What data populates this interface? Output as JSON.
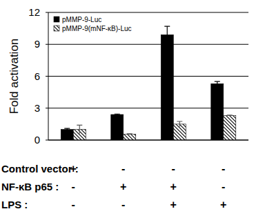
{
  "chart_data": {
    "type": "bar",
    "y_label": "Fold activation",
    "categories": [
      null,
      null,
      null,
      null
    ],
    "series": [
      {
        "name": "pMMP-9-Luc",
        "color": "#000000",
        "values": [
          1.0,
          2.4,
          9.9,
          5.3
        ],
        "errors": [
          0.1,
          0.05,
          0.8,
          0.2
        ]
      },
      {
        "name": "pMMP-9(mNF-κB)-Luc",
        "color": "#000000",
        "marker": "hatch",
        "values": [
          1.0,
          0.55,
          1.5,
          2.3
        ],
        "errors": [
          0.4,
          0.05,
          0.25,
          0.05
        ]
      }
    ],
    "ylim": [
      0,
      12
    ],
    "yticks": [
      0,
      3,
      6,
      9,
      12
    ],
    "grid": true,
    "legend": "upper left",
    "conditions": [
      {
        "label": "Control vector :",
        "values": [
          "+",
          "-",
          "-",
          "-"
        ]
      },
      {
        "label": "NF-κB p65 :",
        "values": [
          "-",
          "+",
          "+",
          "-"
        ]
      },
      {
        "label": "LPS :",
        "values": [
          "-",
          "-",
          "+",
          "+"
        ]
      }
    ]
  }
}
